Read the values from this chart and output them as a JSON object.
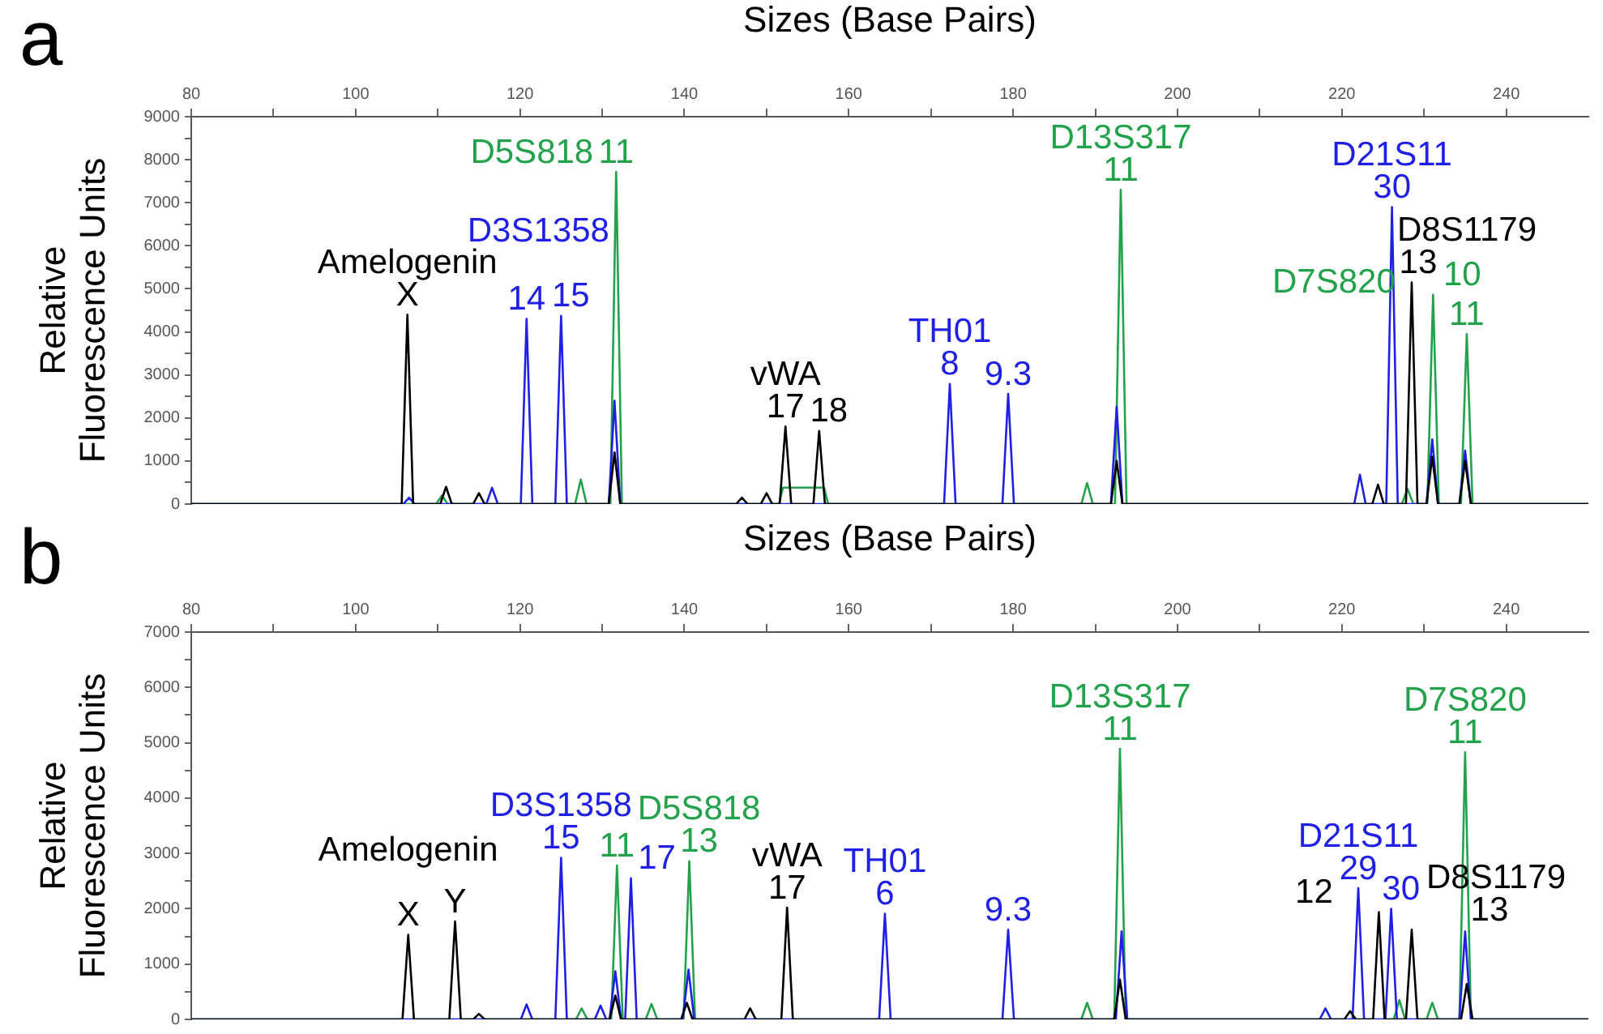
{
  "chart_data": [
    {
      "type": "line",
      "xlabel": "Sizes (Base Pairs)",
      "ylabel": "Relative Fluorescence Units",
      "legend": false,
      "marker": "none",
      "xlim": [
        80,
        250
      ],
      "xticks": [
        80,
        {
          "value": 90,
          "label": null
        },
        100,
        {
          "value": 110,
          "label": null
        },
        120,
        {
          "value": 130,
          "label": null
        },
        140,
        {
          "value": 150,
          "label": null
        },
        160,
        {
          "value": 170,
          "label": null
        },
        180,
        {
          "value": 190,
          "label": null
        },
        200,
        {
          "value": 210,
          "label": null
        },
        220,
        {
          "value": 230,
          "label": null
        },
        240
      ],
      "ylim": [
        0,
        9000
      ],
      "yticks": [
        0,
        {
          "value": 500,
          "label": null
        },
        1000,
        {
          "value": 1500,
          "label": null
        },
        2000,
        {
          "value": 2500,
          "label": null
        },
        3000,
        {
          "value": 3500,
          "label": null
        },
        4000,
        {
          "value": 4500,
          "label": null
        },
        5000,
        {
          "value": 5500,
          "label": null
        },
        6000,
        {
          "value": 6500,
          "label": null
        },
        7000,
        {
          "value": 7500,
          "label": null
        },
        8000,
        {
          "value": 8500,
          "label": null
        },
        9000
      ],
      "series": [
        {
          "color": "#000000",
          "x": [
            80,
            105.6,
            106.3,
            107,
            110.3,
            111,
            111.7,
            114.3,
            115,
            115.7,
            130.8,
            131.5,
            132.2,
            146.3,
            147,
            147.7,
            149.3,
            150,
            150.7,
            151.6,
            152.3,
            153,
            155.7,
            156.4,
            157.1,
            191.9,
            192.6,
            193.3,
            223.7,
            224.4,
            225.1,
            227.8,
            228.5,
            229.2,
            230.3,
            231,
            231.7,
            234.3,
            235,
            235.7,
            250
          ],
          "values": [
            0,
            0,
            4400,
            0,
            0,
            400,
            0,
            0,
            250,
            0,
            0,
            1200,
            0,
            0,
            150,
            0,
            0,
            250,
            0,
            0,
            1800,
            0,
            0,
            1700,
            0,
            0,
            1000,
            0,
            0,
            450,
            0,
            0,
            5150,
            0,
            0,
            1100,
            0,
            0,
            1000,
            0,
            0
          ]
        },
        {
          "color": "#1f1fe6",
          "x": [
            80,
            105.8,
            106.5,
            107.2,
            115.9,
            116.6,
            117.3,
            120.1,
            120.8,
            121.5,
            124.3,
            125,
            125.7,
            130.8,
            131.5,
            132.2,
            171.6,
            172.3,
            173,
            178.7,
            179.4,
            180.1,
            191.9,
            192.6,
            193.3,
            221.5,
            222.2,
            222.9,
            225.4,
            226.1,
            226.8,
            230.3,
            231,
            231.7,
            234.3,
            235,
            235.7,
            250
          ],
          "values": [
            0,
            0,
            150,
            0,
            0,
            380,
            0,
            0,
            4300,
            0,
            0,
            4370,
            0,
            0,
            2400,
            0,
            0,
            2790,
            0,
            0,
            2560,
            0,
            0,
            2260,
            0,
            0,
            680,
            0,
            0,
            6900,
            0,
            0,
            1500,
            0,
            0,
            1240,
            0,
            0
          ]
        },
        {
          "color": "#22a24a",
          "x": [
            80,
            109.8,
            110.5,
            111.2,
            126.7,
            127.4,
            128.1,
            131,
            131.7,
            132.4,
            151.5,
            152,
            157,
            157.5,
            188.3,
            189,
            189.7,
            192.4,
            193.1,
            193.8,
            227.3,
            228,
            228.7,
            230.4,
            231.1,
            231.8,
            234.5,
            235.2,
            235.9,
            250
          ],
          "values": [
            0,
            0,
            200,
            0,
            0,
            570,
            0,
            0,
            7720,
            0,
            0,
            380,
            380,
            0,
            0,
            490,
            0,
            0,
            7300,
            0,
            0,
            350,
            0,
            0,
            4860,
            0,
            0,
            3950,
            0,
            0
          ]
        }
      ],
      "annotations": [
        "a",
        {
          "text": "X",
          "x": 106.3,
          "y": 4400
        },
        {
          "text": "14",
          "x": 120.8,
          "y": 4300
        },
        {
          "text": "15",
          "x": 125,
          "y": 4370
        },
        {
          "text": "11",
          "x": 131.7,
          "y": 7720
        },
        {
          "text": "17",
          "x": 152.3,
          "y": 1800
        },
        {
          "text": "18",
          "x": 156.4,
          "y": 1700
        },
        {
          "text": "8",
          "x": 172.3,
          "y": 2790
        },
        {
          "text": "9.3",
          "x": 179.4,
          "y": 2560
        },
        {
          "text": "11",
          "x": 193.1,
          "y": 7300
        },
        {
          "text": "30",
          "x": 226.1,
          "y": 6900
        },
        {
          "text": "13",
          "x": 228.5,
          "y": 5150
        },
        {
          "text": "10",
          "x": 231.1,
          "y": 4860
        },
        {
          "text": "11",
          "x": 235.2,
          "y": 3950
        },
        {
          "text": "Amelogenin",
          "x": 106.3,
          "y": 4400
        },
        {
          "text": "D3S1358",
          "x": 125,
          "y": 4370
        },
        {
          "text": "D5S818",
          "x": 131.7,
          "y": 7720
        },
        {
          "text": "vWA",
          "x": 152.3,
          "y": 1800
        },
        {
          "text": "TH01",
          "x": 172.3,
          "y": 2790
        },
        {
          "text": "D13S317",
          "x": 193.1,
          "y": 7300
        },
        {
          "text": "D21S11",
          "x": 226.1,
          "y": 6900
        },
        {
          "text": "D8S1179",
          "x": 228.5,
          "y": 5150
        },
        {
          "text": "D7S820",
          "x": 235.2,
          "y": 3950
        }
      ]
    },
    {
      "type": "line",
      "xlabel": "Sizes (Base Pairs)",
      "ylabel": "Relative Fluorescence Units",
      "legend": false,
      "marker": "none",
      "xlim": [
        80,
        250
      ],
      "xticks": [
        80,
        {
          "value": 90,
          "label": null
        },
        100,
        {
          "value": 110,
          "label": null
        },
        120,
        {
          "value": 130,
          "label": null
        },
        140,
        {
          "value": 150,
          "label": null
        },
        160,
        {
          "value": 170,
          "label": null
        },
        180,
        {
          "value": 190,
          "label": null
        },
        200,
        {
          "value": 210,
          "label": null
        },
        220,
        {
          "value": 230,
          "label": null
        },
        240
      ],
      "ylim": [
        0,
        7000
      ],
      "yticks": [
        0,
        {
          "value": 500,
          "label": null
        },
        1000,
        {
          "value": 1500,
          "label": null
        },
        2000,
        {
          "value": 2500,
          "label": null
        },
        3000,
        {
          "value": 3500,
          "label": null
        },
        4000,
        {
          "value": 4500,
          "label": null
        },
        5000,
        {
          "value": 5500,
          "label": null
        },
        6000,
        {
          "value": 6500,
          "label": null
        },
        7000
      ],
      "series": [
        {
          "color": "#000000",
          "x": [
            80,
            105.7,
            106.4,
            107.1,
            111.4,
            112.1,
            112.8,
            114.3,
            115,
            115.7,
            130.9,
            131.6,
            132.3,
            139.6,
            140.3,
            141,
            147.3,
            148,
            148.7,
            151.8,
            152.5,
            153.2,
            192.3,
            193,
            193.7,
            220.3,
            221,
            221.7,
            223.8,
            224.5,
            225.2,
            227.8,
            228.5,
            229.2,
            234.5,
            235.2,
            235.9,
            250
          ],
          "values": [
            0,
            0,
            1530,
            0,
            0,
            1770,
            0,
            0,
            100,
            0,
            0,
            430,
            0,
            0,
            300,
            0,
            0,
            200,
            0,
            0,
            2020,
            0,
            0,
            720,
            0,
            0,
            150,
            0,
            0,
            1940,
            0,
            0,
            1620,
            0,
            0,
            640,
            0,
            0
          ]
        },
        {
          "color": "#1f1fe6",
          "x": [
            80,
            120.1,
            120.8,
            121.5,
            124.3,
            125,
            125.7,
            129.1,
            129.8,
            130.5,
            130.9,
            131.6,
            132.3,
            132.8,
            133.5,
            134.2,
            139.8,
            140.5,
            141.2,
            163.7,
            164.4,
            165.1,
            178.7,
            179.4,
            180.1,
            192.5,
            193.2,
            193.9,
            217.3,
            218,
            218.7,
            221.3,
            222,
            222.7,
            225.3,
            226,
            226.7,
            234.3,
            235,
            235.7,
            250
          ],
          "values": [
            0,
            0,
            270,
            0,
            0,
            2920,
            0,
            0,
            250,
            0,
            0,
            870,
            0,
            0,
            2550,
            0,
            0,
            900,
            0,
            0,
            1910,
            0,
            0,
            1620,
            0,
            0,
            1590,
            0,
            0,
            200,
            0,
            0,
            2370,
            0,
            0,
            2000,
            0,
            0,
            1590,
            0,
            0
          ]
        },
        {
          "color": "#22a24a",
          "x": [
            80,
            126.8,
            127.5,
            128.2,
            131.1,
            131.8,
            132.5,
            135.3,
            136,
            136.7,
            139.9,
            140.6,
            141.3,
            188.3,
            189,
            189.7,
            192.3,
            193,
            193.7,
            226.3,
            227,
            227.7,
            230.3,
            231,
            231.7,
            234.3,
            235,
            235.7,
            250
          ],
          "values": [
            0,
            0,
            200,
            0,
            0,
            2780,
            0,
            0,
            280,
            0,
            0,
            2860,
            0,
            0,
            300,
            0,
            0,
            4890,
            0,
            0,
            350,
            0,
            0,
            300,
            0,
            0,
            4830,
            0,
            0
          ]
        }
      ],
      "annotations": [
        "b",
        {
          "text": "X",
          "x": 106.4,
          "y": 1530
        },
        {
          "text": "Y",
          "x": 112.1,
          "y": 1770
        },
        {
          "text": "15",
          "x": 125,
          "y": 2920
        },
        {
          "text": "11",
          "x": 131.8,
          "y": 2780
        },
        {
          "text": "17",
          "x": 133.5,
          "y": 2550
        },
        {
          "text": "13",
          "x": 140.6,
          "y": 2860
        },
        {
          "text": "17",
          "x": 152.5,
          "y": 2020
        },
        {
          "text": "6",
          "x": 164.4,
          "y": 1910
        },
        {
          "text": "9.3",
          "x": 179.4,
          "y": 1620
        },
        {
          "text": "11",
          "x": 193,
          "y": 4890
        },
        {
          "text": "29",
          "x": 222,
          "y": 2370
        },
        {
          "text": "30",
          "x": 226,
          "y": 2000
        },
        {
          "text": "12",
          "x": 224.5,
          "y": 1940
        },
        {
          "text": "13",
          "x": 228.5,
          "y": 1620
        },
        {
          "text": "11",
          "x": 235,
          "y": 4830
        },
        {
          "text": "Amelogenin",
          "x": 106.4,
          "y": 1530
        },
        {
          "text": "D3S1358",
          "x": 125,
          "y": 2920
        },
        {
          "text": "D5S818",
          "x": 140.6,
          "y": 2860
        },
        {
          "text": "vWA",
          "x": 152.5,
          "y": 2020
        },
        {
          "text": "TH01",
          "x": 164.4,
          "y": 1910
        },
        {
          "text": "D13S317",
          "x": 193,
          "y": 4890
        },
        {
          "text": "D21S11",
          "x": 222,
          "y": 2370
        },
        {
          "text": "D8S1179",
          "x": 228.5,
          "y": 1620
        },
        {
          "text": "D7S820",
          "x": 235,
          "y": 4830
        }
      ]
    }
  ]
}
